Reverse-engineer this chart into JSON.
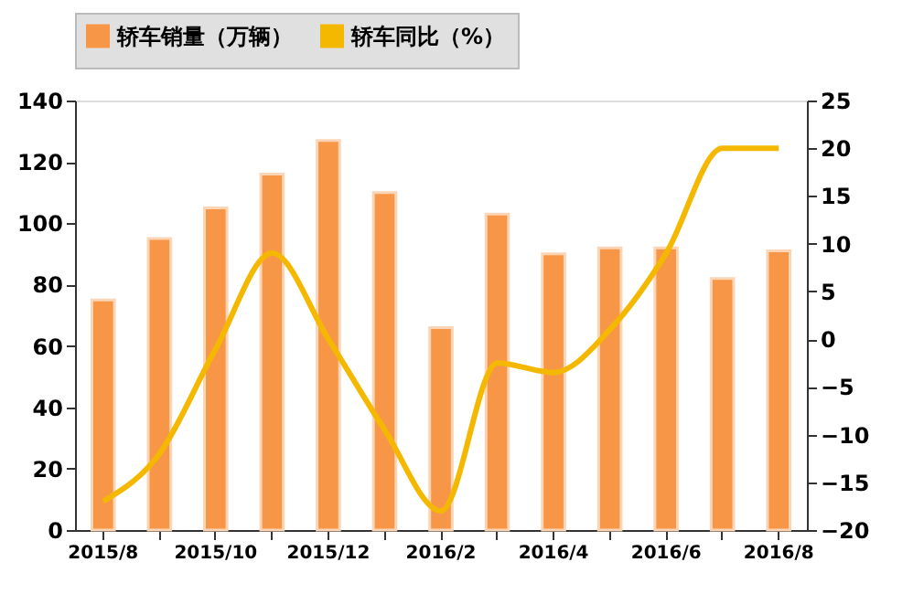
{
  "chart_data": {
    "type": "bar",
    "categories": [
      "2015/8",
      null,
      "2015/10",
      null,
      "2015/12",
      null,
      "2016/2",
      null,
      "2016/4",
      null,
      "2016/6",
      null,
      "2016/8"
    ],
    "series": [
      {
        "name": "轿车销量（万辆）",
        "color": "#f79646",
        "values": [
          75,
          95,
          105,
          116,
          127,
          110,
          66,
          103,
          90,
          92,
          92,
          82,
          91
        ]
      },
      {
        "name": "轿车同比（%）",
        "type": "line",
        "axis": "y2",
        "color": "#f5b800",
        "values": [
          -17,
          -12,
          -1,
          9,
          0,
          -9.5,
          -18,
          -2.5,
          -3.5,
          1,
          9,
          20,
          20
        ]
      }
    ],
    "ylim": [
      0,
      140
    ],
    "yticks": [
      0,
      20,
      40,
      60,
      80,
      100,
      120,
      140
    ],
    "y2lim": [
      -20,
      25
    ],
    "y2ticks": [
      -20,
      -15,
      -10,
      -5,
      0,
      5,
      10,
      15,
      20,
      25
    ],
    "legend": "top",
    "grid": false,
    "marker": "none",
    "line_style": "solid"
  }
}
